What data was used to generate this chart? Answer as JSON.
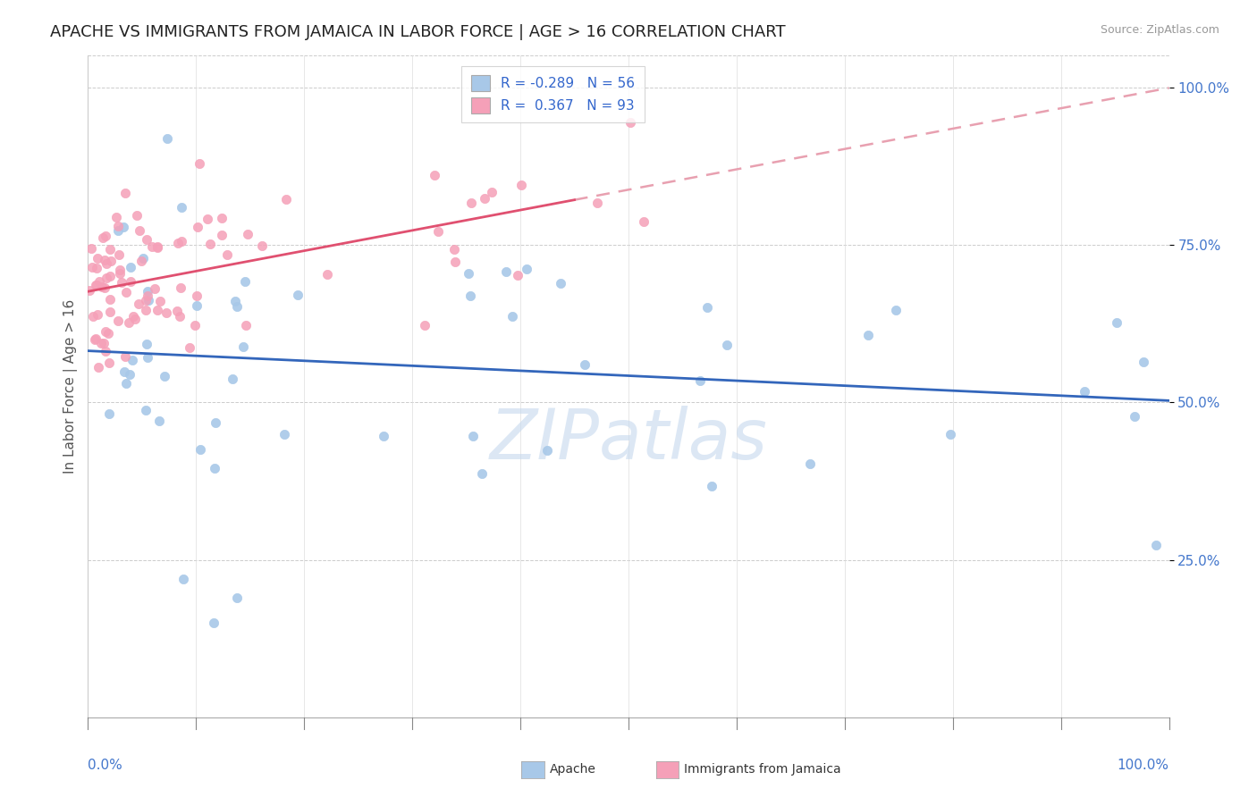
{
  "title": "APACHE VS IMMIGRANTS FROM JAMAICA IN LABOR FORCE | AGE > 16 CORRELATION CHART",
  "source": "Source: ZipAtlas.com",
  "ylabel": "In Labor Force | Age > 16",
  "xlim": [
    0.0,
    1.0
  ],
  "ylim": [
    0.0,
    1.05
  ],
  "yticks": [
    0.25,
    0.5,
    0.75,
    1.0
  ],
  "ytick_labels": [
    "25.0%",
    "50.0%",
    "75.0%",
    "100.0%"
  ],
  "apache_R": -0.289,
  "apache_N": 56,
  "jamaica_R": 0.367,
  "jamaica_N": 93,
  "apache_color": "#a8c8e8",
  "jamaica_color": "#f5a0b8",
  "apache_line_color": "#3366bb",
  "jamaica_line_color": "#e05070",
  "jamaica_dash_color": "#e8a0b0",
  "title_fontsize": 13,
  "label_fontsize": 11,
  "tick_label_fontsize": 11,
  "background_color": "#ffffff",
  "watermark_color": "#c5d8ee",
  "watermark_alpha": 0.6
}
